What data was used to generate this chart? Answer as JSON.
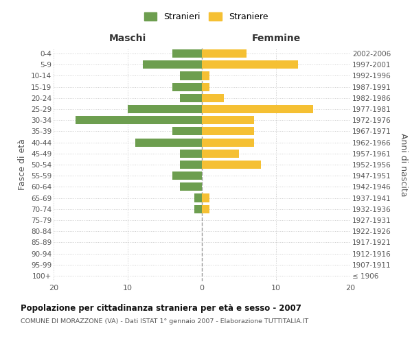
{
  "age_groups": [
    "100+",
    "95-99",
    "90-94",
    "85-89",
    "80-84",
    "75-79",
    "70-74",
    "65-69",
    "60-64",
    "55-59",
    "50-54",
    "45-49",
    "40-44",
    "35-39",
    "30-34",
    "25-29",
    "20-24",
    "15-19",
    "10-14",
    "5-9",
    "0-4"
  ],
  "birth_years": [
    "≤ 1906",
    "1907-1911",
    "1912-1916",
    "1917-1921",
    "1922-1926",
    "1927-1931",
    "1932-1936",
    "1937-1941",
    "1942-1946",
    "1947-1951",
    "1952-1956",
    "1957-1961",
    "1962-1966",
    "1967-1971",
    "1972-1976",
    "1977-1981",
    "1982-1986",
    "1987-1991",
    "1992-1996",
    "1997-2001",
    "2002-2006"
  ],
  "males": [
    0,
    0,
    0,
    0,
    0,
    0,
    1,
    1,
    3,
    4,
    3,
    3,
    9,
    4,
    17,
    10,
    3,
    4,
    3,
    8,
    4
  ],
  "females": [
    0,
    0,
    0,
    0,
    0,
    0,
    1,
    1,
    0,
    0,
    8,
    5,
    7,
    7,
    7,
    15,
    3,
    1,
    1,
    13,
    6
  ],
  "male_color": "#6d9e4f",
  "female_color": "#f5c033",
  "background_color": "#ffffff",
  "grid_color": "#cccccc",
  "title": "Popolazione per cittadinanza straniera per età e sesso - 2007",
  "subtitle": "COMUNE DI MORAZZONE (VA) - Dati ISTAT 1° gennaio 2007 - Elaborazione TUTTITALIA.IT",
  "xlabel_left": "Maschi",
  "xlabel_right": "Femmine",
  "ylabel_left": "Fasce di età",
  "ylabel_right": "Anni di nascita",
  "legend_male": "Stranieri",
  "legend_female": "Straniere",
  "xlim": 20
}
